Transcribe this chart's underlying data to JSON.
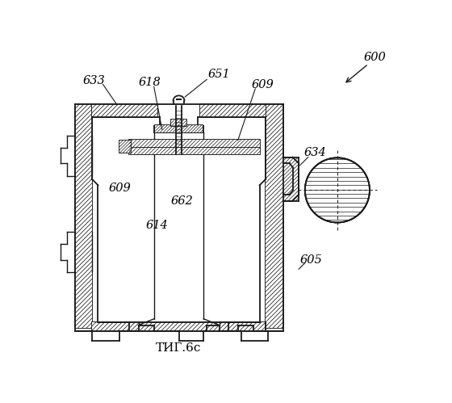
{
  "caption": "ΤИГ.6c",
  "label_600": "600",
  "label_633": "633",
  "label_618": "618",
  "label_651": "651",
  "label_609a": "609",
  "label_609b": "609",
  "label_634": "634",
  "label_662": "662",
  "label_614": "614",
  "label_605": "605",
  "bg_color": "#ffffff",
  "line_color": "#1a1a1a",
  "figsize": [
    5.6,
    4.99
  ],
  "dpi": 100
}
